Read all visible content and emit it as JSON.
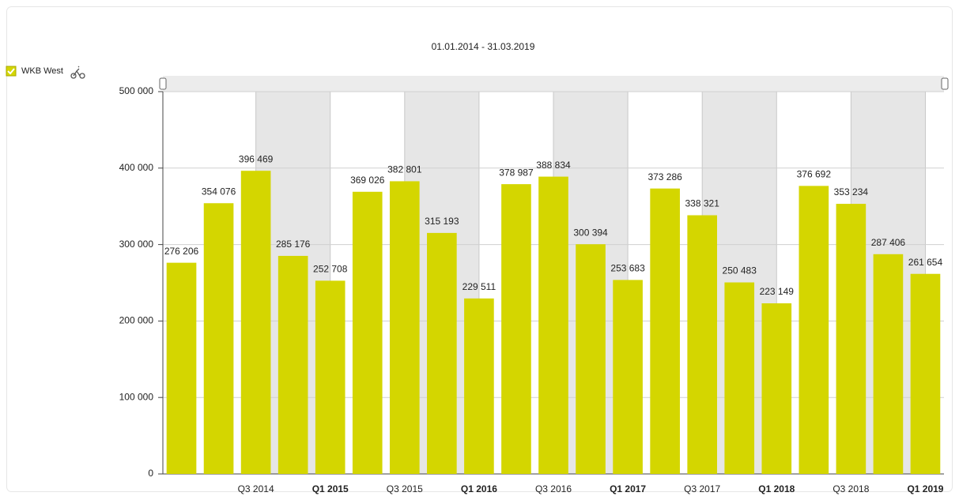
{
  "chart_data": {
    "type": "bar",
    "title": "01.01.2014 - 31.03.2019",
    "legend": {
      "name": "WKB West"
    },
    "series": [
      {
        "name": "WKB West",
        "color": "#d4d600",
        "values": [
          276206,
          354076,
          396469,
          285176,
          252708,
          369026,
          382801,
          315193,
          229511,
          378987,
          388834,
          300394,
          253683,
          373286,
          338321,
          250483,
          223149,
          376692,
          353234,
          287406,
          261654
        ],
        "value_labels": [
          "276 206",
          "354 076",
          "396 469",
          "285 176",
          "252 708",
          "369 026",
          "382 801",
          "315 193",
          "229 511",
          "378 987",
          "388 834",
          "300 394",
          "253 683",
          "373 286",
          "338 321",
          "250 483",
          "223 149",
          "376 692",
          "353 234",
          "287 406",
          "261 654"
        ]
      }
    ],
    "categories": [
      null,
      null,
      "Q3 2014",
      null,
      "Q1 2015",
      null,
      "Q3 2015",
      null,
      "Q1 2016",
      null,
      "Q3 2016",
      null,
      "Q1 2017",
      null,
      "Q3 2017",
      null,
      "Q1 2018",
      null,
      "Q3 2018",
      null,
      "Q1 2019"
    ],
    "ylim": [
      0,
      500000
    ],
    "yticks": [
      0,
      {
        "value": 100000,
        "label": "100 000"
      },
      {
        "value": 200000,
        "label": "200 000"
      },
      {
        "value": 300000,
        "label": "300 000"
      },
      {
        "value": 400000,
        "label": "400 000"
      },
      {
        "value": 500000,
        "label": "500 000"
      }
    ],
    "grid": true
  }
}
